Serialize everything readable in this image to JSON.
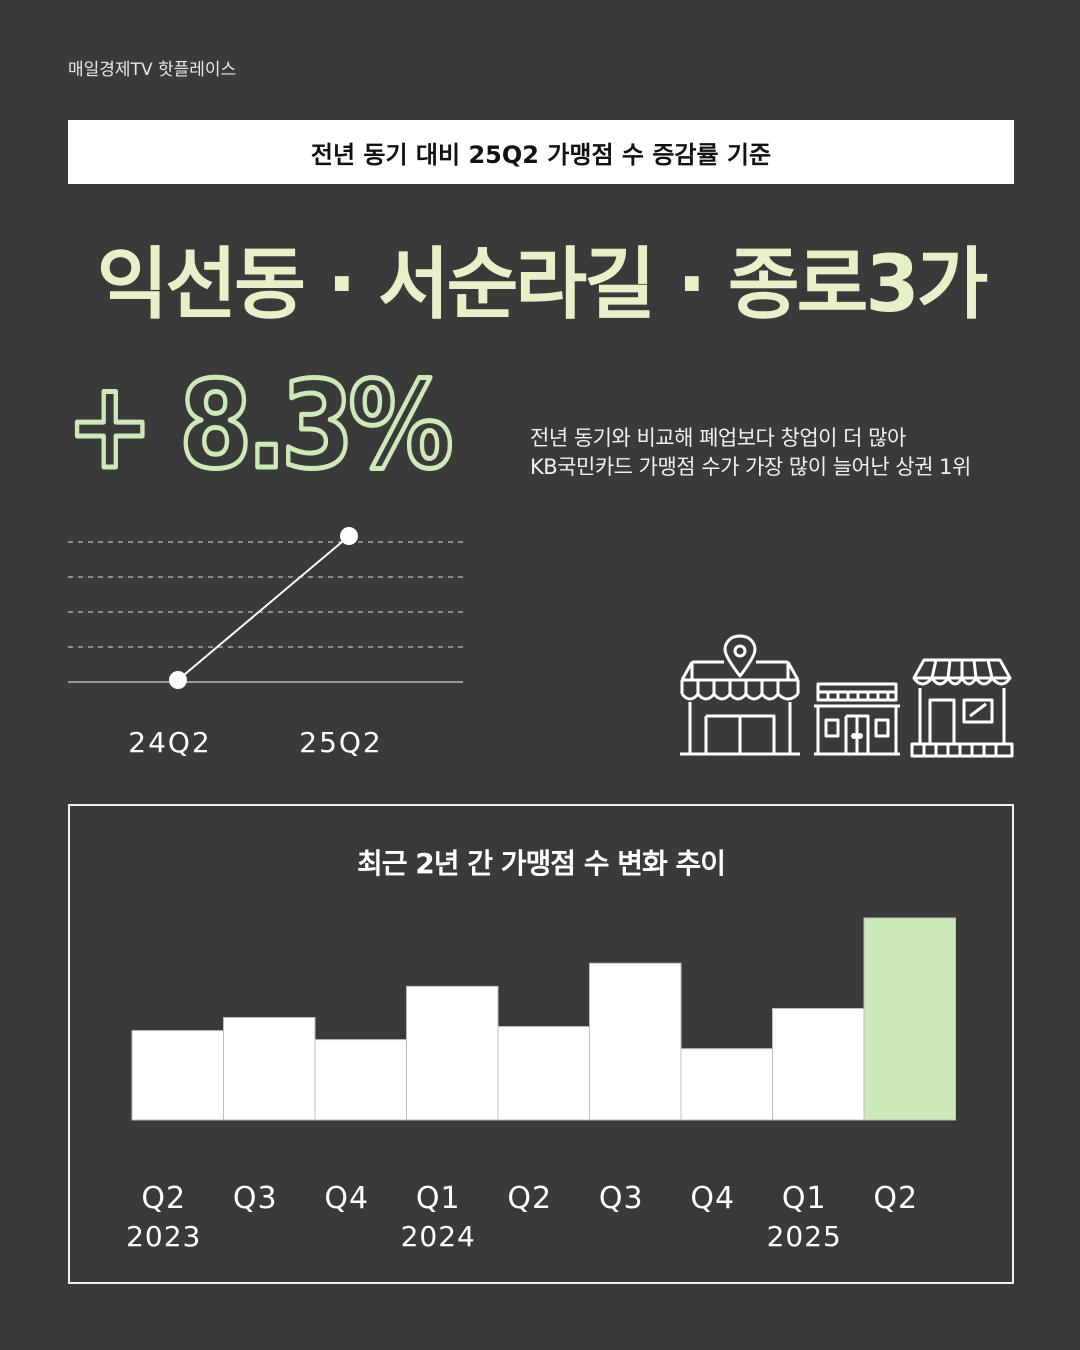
{
  "brand": "매일경제TV 핫플레이스",
  "criteria": "전년 동기 대비 25Q2 가맹점 수 증감률 기준",
  "headline": "익선동 · 서순라길 · 종로3가",
  "growth": "+ 8.3%",
  "description": [
    "전년 동기와 비교해 폐업보다 창업이 더 많아",
    "KB국민카드 가맹점 수가 가장 많이 늘어난 상권 1위"
  ],
  "colors": {
    "background": "#3a3a3a",
    "accent": "#cde8b9",
    "headline": "#e6f0c9",
    "bar": "#ffffff"
  },
  "icons": [
    "store-with-pin-icon",
    "small-shop-icon",
    "awning-shop-icon"
  ],
  "chart_data": [
    {
      "type": "line",
      "categories": [
        "24Q2",
        "25Q2"
      ],
      "values": [
        0,
        8.3
      ],
      "ylim": [
        0,
        8.3
      ],
      "grid": true
    },
    {
      "type": "bar",
      "title": "최근 2년 간 가맹점 수 변화 추이",
      "categories": [
        "Q2",
        "Q3",
        "Q4",
        "Q1",
        "Q2",
        "Q3",
        "Q4",
        "Q1",
        "Q2"
      ],
      "years": [
        {
          "label": "2023",
          "at": 0
        },
        {
          "label": "2024",
          "at": 3
        },
        {
          "label": "2025",
          "at": 7
        }
      ],
      "values": [
        89,
        102,
        80,
        133,
        93,
        156,
        71,
        111,
        201
      ],
      "highlight_index": 8,
      "note": "relative bar heights; no value axis shown"
    }
  ]
}
